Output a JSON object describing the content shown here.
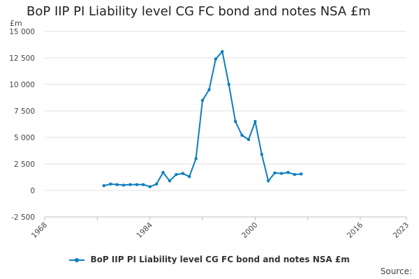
{
  "chart_data": {
    "type": "line",
    "title": "BoP IIP PI Liability level CG FC bond and notes NSA £m",
    "ylabel": "£m",
    "xlabel": "",
    "xlim": [
      1968,
      2023
    ],
    "ylim": [
      -2500,
      15000
    ],
    "x_ticks": [
      1968,
      1984,
      2000,
      2016,
      2023
    ],
    "y_ticks": [
      -2500,
      0,
      2500,
      5000,
      7500,
      10000,
      12500,
      15000
    ],
    "y_tick_labels": [
      "-2 500",
      "0",
      "2 500",
      "5 000",
      "7 500",
      "10 000",
      "12 500",
      "15 000"
    ],
    "grid": "horizontal",
    "legend_position": "bottom",
    "series": [
      {
        "name": "BoP IIP PI Liability level CG FC bond and notes NSA £m",
        "color": "#0b7dbf",
        "x": [
          1977,
          1978,
          1979,
          1980,
          1981,
          1982,
          1983,
          1984,
          1985,
          1986,
          1987,
          1988,
          1989,
          1990,
          1991,
          1992,
          1993,
          1994,
          1995,
          1996,
          1997,
          1998,
          1999,
          2000,
          2001,
          2002,
          2003,
          2004,
          2005,
          2006,
          2007
        ],
        "values": [
          450,
          600,
          550,
          500,
          550,
          550,
          550,
          350,
          600,
          1700,
          900,
          1500,
          1600,
          1300,
          3000,
          8500,
          9500,
          12400,
          13100,
          10000,
          6500,
          5200,
          4800,
          6500,
          3400,
          900,
          1650,
          1600,
          1700,
          1500,
          1550
        ]
      }
    ]
  },
  "legend": {
    "label": "BoP IIP PI Liability level CG FC bond and notes NSA £m"
  },
  "footer": {
    "source_label": "Source:"
  }
}
